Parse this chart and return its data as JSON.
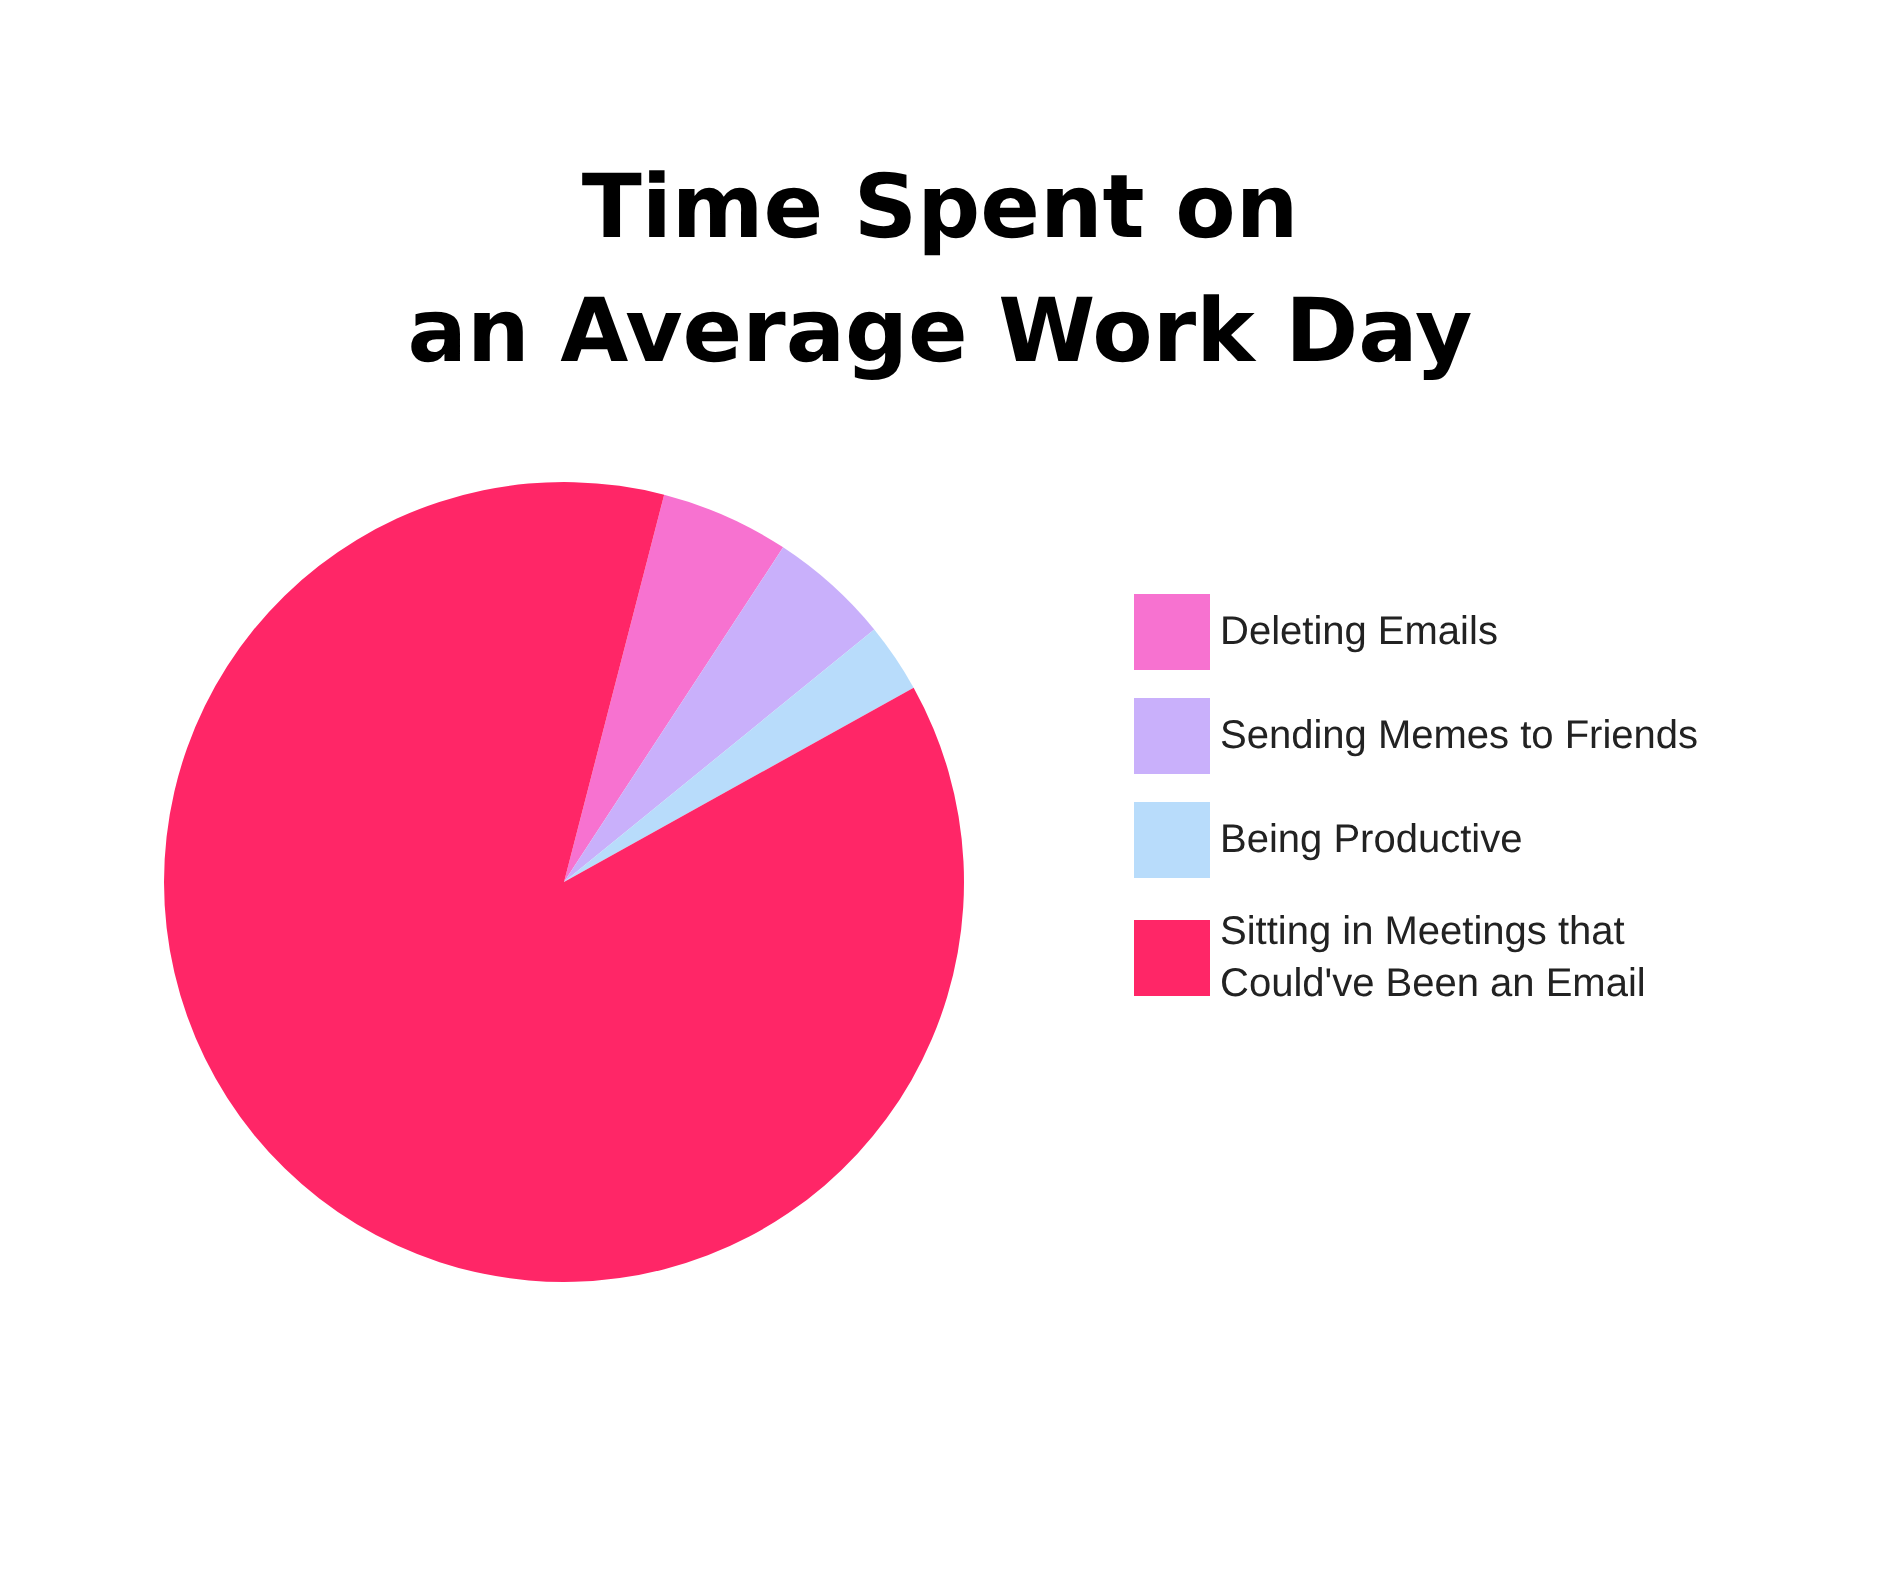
{
  "chart_data": {
    "type": "pie",
    "title": "Time Spent on\nan Average Work Day",
    "categories": [
      "Deleting Emails",
      "Sending Memes to Friends",
      "Being Productive",
      "Sitting in Meetings that Could've Been an Email"
    ],
    "values": [
      5.2,
      4.9,
      2.8,
      87.1
    ],
    "colors": [
      "#f772d0",
      "#c9b0fb",
      "#b8dcfb",
      "#ff2667"
    ],
    "legend": "right"
  }
}
